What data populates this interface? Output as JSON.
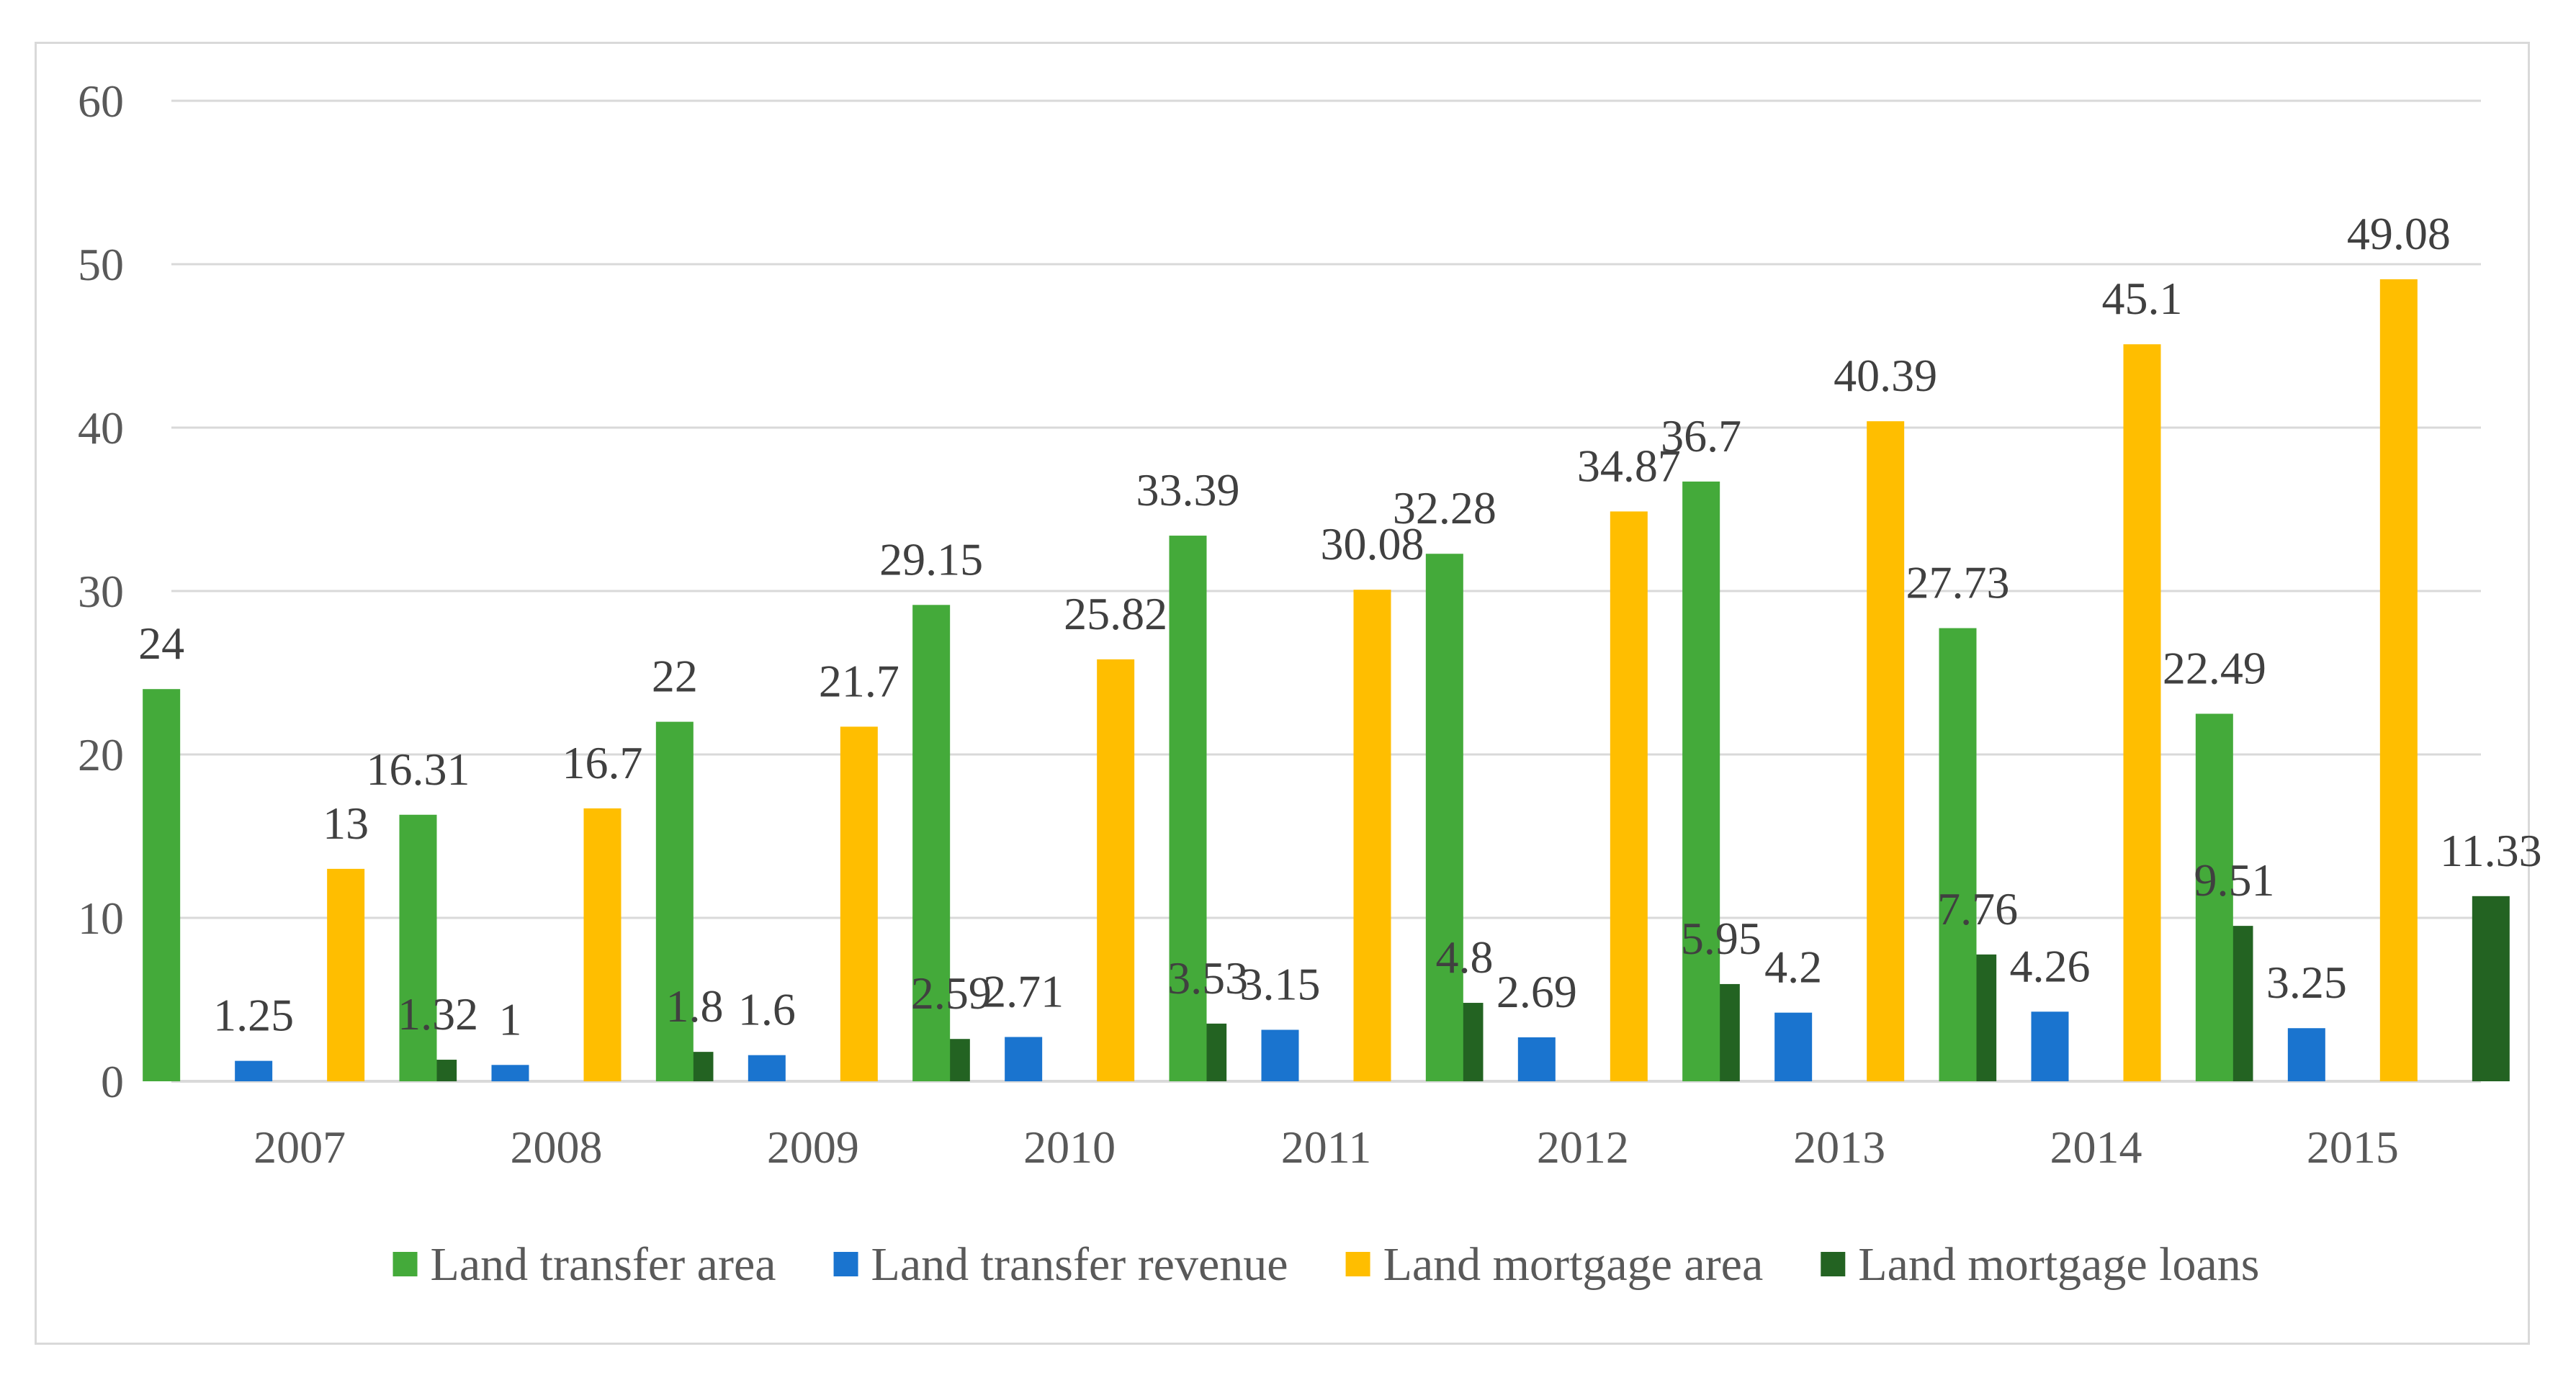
{
  "chart_data": {
    "type": "bar",
    "categories": [
      "2007",
      "2008",
      "2009",
      "2010",
      "2011",
      "2012",
      "2013",
      "2014",
      "2015"
    ],
    "series": [
      {
        "name": "Land transfer area",
        "color": "#44AA3A",
        "values": [
          24,
          16.31,
          22,
          29.15,
          33.39,
          32.28,
          36.7,
          27.73,
          22.49
        ],
        "labels": [
          "24",
          "16.31",
          "22",
          "29.15",
          "33.39",
          "32.28",
          "36.7",
          "27.73",
          "22.49"
        ]
      },
      {
        "name": "Land transfer revenue",
        "color": "#1A74CF",
        "values": [
          1.25,
          1,
          1.6,
          2.71,
          3.15,
          2.69,
          4.2,
          4.26,
          3.25
        ],
        "labels": [
          "1.25",
          "1",
          "1.6",
          "2.71",
          "3.15",
          "2.69",
          "4.2",
          "4.26",
          "3.25"
        ]
      },
      {
        "name": "Land mortgage area",
        "color": "#FFBE00",
        "values": [
          13,
          16.7,
          21.7,
          25.82,
          30.08,
          34.87,
          40.39,
          45.1,
          49.08
        ],
        "labels": [
          "13",
          "16.7",
          "21.7",
          "25.82",
          "30.08",
          "34.87",
          "40.39",
          "45.1",
          "49.08"
        ]
      },
      {
        "name": "Land mortgage loans",
        "color": "#236322",
        "values": [
          1.32,
          1.8,
          2.59,
          3.53,
          4.8,
          5.95,
          7.76,
          9.51,
          11.33
        ],
        "labels": [
          "1.32",
          "1.8",
          "2.59",
          "3.53",
          "4.8",
          "5.95",
          "7.76",
          "9.51",
          "11.33"
        ]
      }
    ],
    "yticks": [
      "0",
      "10",
      "20",
      "30",
      "40",
      "50",
      "60"
    ],
    "ylim": [
      0,
      60
    ],
    "title": "",
    "xlabel": "",
    "ylabel": "",
    "grid": true,
    "gridColor": "#d9d9d9",
    "legend_position": "bottom"
  }
}
